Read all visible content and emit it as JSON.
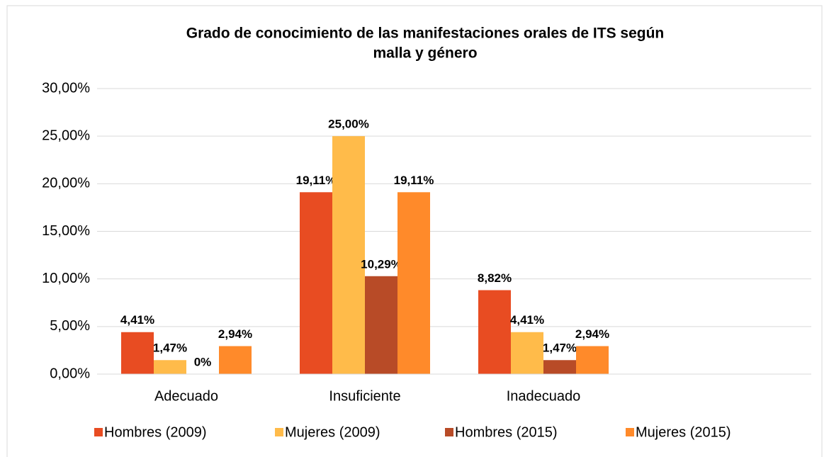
{
  "chart_data": {
    "type": "bar",
    "title": [
      "Grado de conocimiento de las manifestaciones orales de ITS según",
      "malla y género"
    ],
    "categories": [
      "Adecuado",
      "Insuficiente",
      "Inadecuado",
      null
    ],
    "series": [
      {
        "name": "Hombres (2009)",
        "color": "#E84C22",
        "values": [
          4.41,
          19.11,
          8.82,
          null
        ],
        "value_labels": [
          "4,41%",
          "19,11%",
          "8,82%",
          null
        ]
      },
      {
        "name": "Mujeres (2009)",
        "color": "#FFBB4A",
        "values": [
          1.47,
          25.0,
          4.41,
          null
        ],
        "value_labels": [
          "1,47%",
          "25,00%",
          "4,41%",
          null
        ]
      },
      {
        "name": "Hombres (2015)",
        "color": "#B84B27",
        "values": [
          0,
          10.29,
          1.47,
          null
        ],
        "value_labels": [
          "0%",
          "10,29%",
          "1,47%",
          null
        ]
      },
      {
        "name": "Mujeres (2015)",
        "color": "#FF8A2A",
        "values": [
          2.94,
          19.11,
          2.94,
          null
        ],
        "value_labels": [
          "2,94%",
          "19,11%",
          "2,94%",
          null
        ]
      }
    ],
    "ylim": [
      0,
      30
    ],
    "yticks": [
      {
        "value": 0,
        "label": "0,00%"
      },
      {
        "value": 5,
        "label": "5,00%"
      },
      {
        "value": 10,
        "label": "10,00%"
      },
      {
        "value": 15,
        "label": "15,00%"
      },
      {
        "value": 20,
        "label": "20,00%"
      },
      {
        "value": 25,
        "label": "25,00%"
      },
      {
        "value": 30,
        "label": "30,00%"
      }
    ],
    "grid": true,
    "legend": "bottom"
  }
}
